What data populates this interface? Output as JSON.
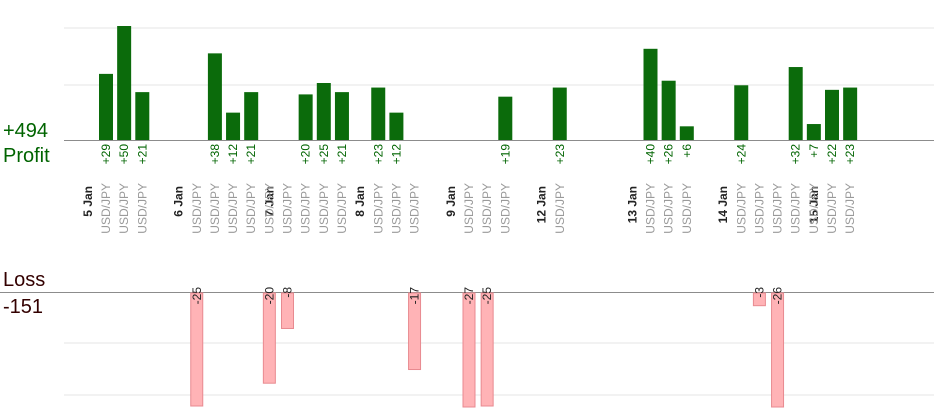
{
  "summary": {
    "profit_total": "+494",
    "profit_label": "Profit",
    "loss_label": "Loss",
    "loss_total": "-151"
  },
  "colors": {
    "profit_bar": "#0b6b0b",
    "profit_text": "#006400",
    "loss_bar": "#ffb3b6",
    "loss_bar_border": "#e88a90",
    "pair_text": "#9a9a9a",
    "day_text": "#222222",
    "grid": "#e6e6e6",
    "axis": "#8c8c8c"
  },
  "chart_data": {
    "type": "bar",
    "instrument": "USD/JPY",
    "days": [
      "5 Jan",
      "6 Jan",
      "7 Jan",
      "8 Jan",
      "9 Jan",
      "12 Jan",
      "13 Jan",
      "14 Jan",
      "15 Jan"
    ],
    "trades": [
      {
        "day": "5 Jan",
        "pair": "USD/JPY",
        "result": 29,
        "label": "+29"
      },
      {
        "day": "5 Jan",
        "pair": "USD/JPY",
        "result": 50,
        "label": "+50"
      },
      {
        "day": "5 Jan",
        "pair": "USD/JPY",
        "result": 21,
        "label": "+21"
      },
      {
        "day": "6 Jan",
        "pair": "USD/JPY",
        "result": -25,
        "label": "-25"
      },
      {
        "day": "6 Jan",
        "pair": "USD/JPY",
        "result": 38,
        "label": "+38"
      },
      {
        "day": "6 Jan",
        "pair": "USD/JPY",
        "result": 12,
        "label": "+12"
      },
      {
        "day": "6 Jan",
        "pair": "USD/JPY",
        "result": 21,
        "label": "+21"
      },
      {
        "day": "6 Jan",
        "pair": "USD/JPY",
        "result": -20,
        "label": "-20"
      },
      {
        "day": "7 Jan",
        "pair": "USD/JPY",
        "result": -8,
        "label": "-8"
      },
      {
        "day": "7 Jan",
        "pair": "USD/JPY",
        "result": 20,
        "label": "+20"
      },
      {
        "day": "7 Jan",
        "pair": "USD/JPY",
        "result": 25,
        "label": "+25"
      },
      {
        "day": "7 Jan",
        "pair": "USD/JPY",
        "result": 21,
        "label": "+21"
      },
      {
        "day": "8 Jan",
        "pair": "USD/JPY",
        "result": 23,
        "label": "+23"
      },
      {
        "day": "8 Jan",
        "pair": "USD/JPY",
        "result": 12,
        "label": "+12"
      },
      {
        "day": "8 Jan",
        "pair": "USD/JPY",
        "result": -17,
        "label": "-17"
      },
      {
        "day": "9 Jan",
        "pair": "USD/JPY",
        "result": -27,
        "label": "-27"
      },
      {
        "day": "9 Jan",
        "pair": "USD/JPY",
        "result": -25,
        "label": "-25"
      },
      {
        "day": "9 Jan",
        "pair": "USD/JPY",
        "result": 19,
        "label": "+19"
      },
      {
        "day": "12 Jan",
        "pair": "USD/JPY",
        "result": 23,
        "label": "+23"
      },
      {
        "day": "13 Jan",
        "pair": "USD/JPY",
        "result": 40,
        "label": "+40"
      },
      {
        "day": "13 Jan",
        "pair": "USD/JPY",
        "result": 26,
        "label": "+26"
      },
      {
        "day": "13 Jan",
        "pair": "USD/JPY",
        "result": 6,
        "label": "+6"
      },
      {
        "day": "14 Jan",
        "pair": "USD/JPY",
        "result": 24,
        "label": "+24"
      },
      {
        "day": "14 Jan",
        "pair": "USD/JPY",
        "result": -3,
        "label": "-3"
      },
      {
        "day": "14 Jan",
        "pair": "USD/JPY",
        "result": -26,
        "label": "-26"
      },
      {
        "day": "14 Jan",
        "pair": "USD/JPY",
        "result": 32,
        "label": "+32"
      },
      {
        "day": "14 Jan",
        "pair": "USD/JPY",
        "result": 7,
        "label": "+7"
      },
      {
        "day": "15 Jan",
        "pair": "USD/JPY",
        "result": 22,
        "label": "+22"
      },
      {
        "day": "15 Jan",
        "pair": "USD/JPY",
        "result": 23,
        "label": "+23"
      }
    ],
    "totals": {
      "profit": 494,
      "loss": -151
    },
    "ylim_profit": [
      0,
      25
    ],
    "ylim_loss": [
      -25,
      0
    ],
    "grid": true,
    "bars_clipped_beyond_ylim": true
  }
}
